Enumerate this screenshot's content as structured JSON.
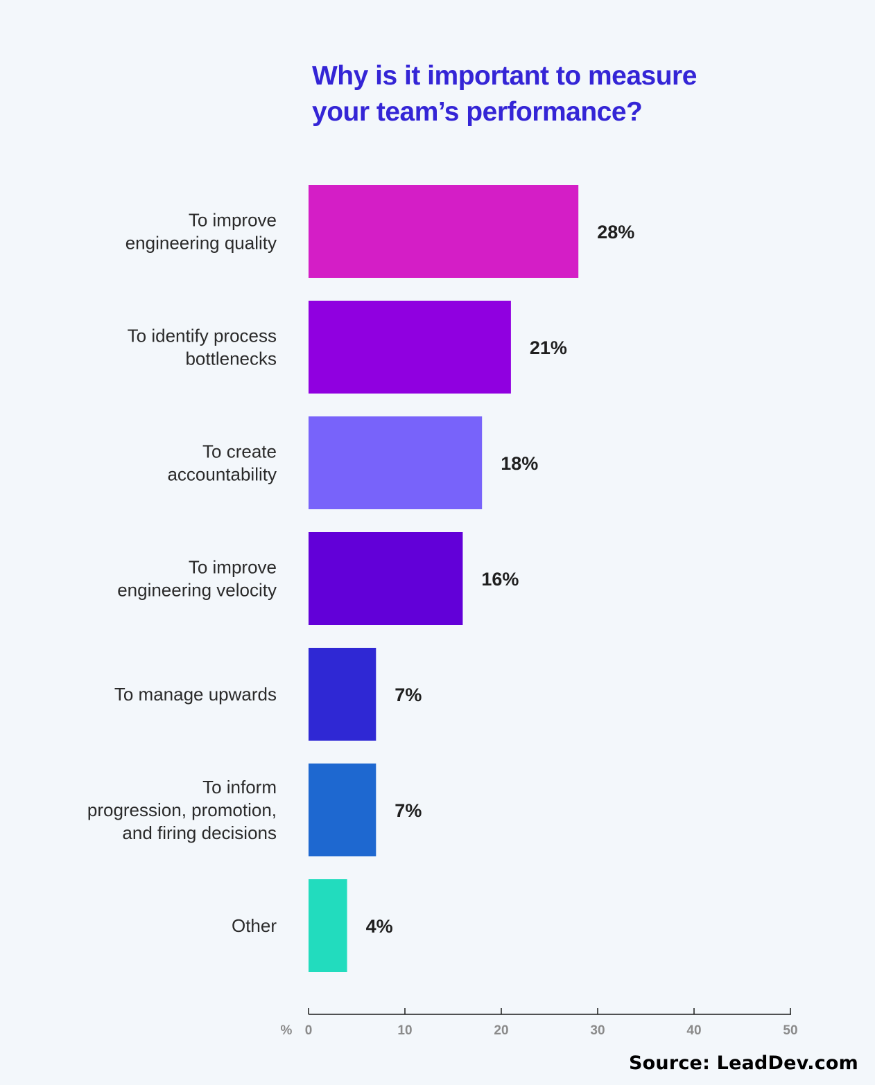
{
  "chart_data": {
    "type": "bar",
    "orientation": "horizontal",
    "title_lines": [
      "Why is it important to measure",
      "your team’s performance?"
    ],
    "categories": [
      [
        "To improve",
        "engineering quality"
      ],
      [
        "To identify process",
        "bottlenecks"
      ],
      [
        "To create",
        "accountability"
      ],
      [
        "To improve",
        "engineering velocity"
      ],
      [
        "To manage upwards"
      ],
      [
        "To inform",
        "progression, promotion,",
        "and firing decisions"
      ],
      [
        "Other"
      ]
    ],
    "values": [
      28,
      21,
      18,
      16,
      7,
      7,
      4
    ],
    "value_labels": [
      "28%",
      "21%",
      "18%",
      "16%",
      "7%",
      "7%",
      "4%"
    ],
    "colors": [
      "#d41ec6",
      "#9000e0",
      "#7863fa",
      "#6200d8",
      "#2f28d4",
      "#1e68d0",
      "#22dcbe"
    ],
    "xlabel": "%",
    "xlim": [
      0,
      50
    ],
    "xticks": [
      0,
      10,
      20,
      30,
      40,
      50
    ],
    "grid": false
  },
  "source": "Source: LeadDev.com"
}
